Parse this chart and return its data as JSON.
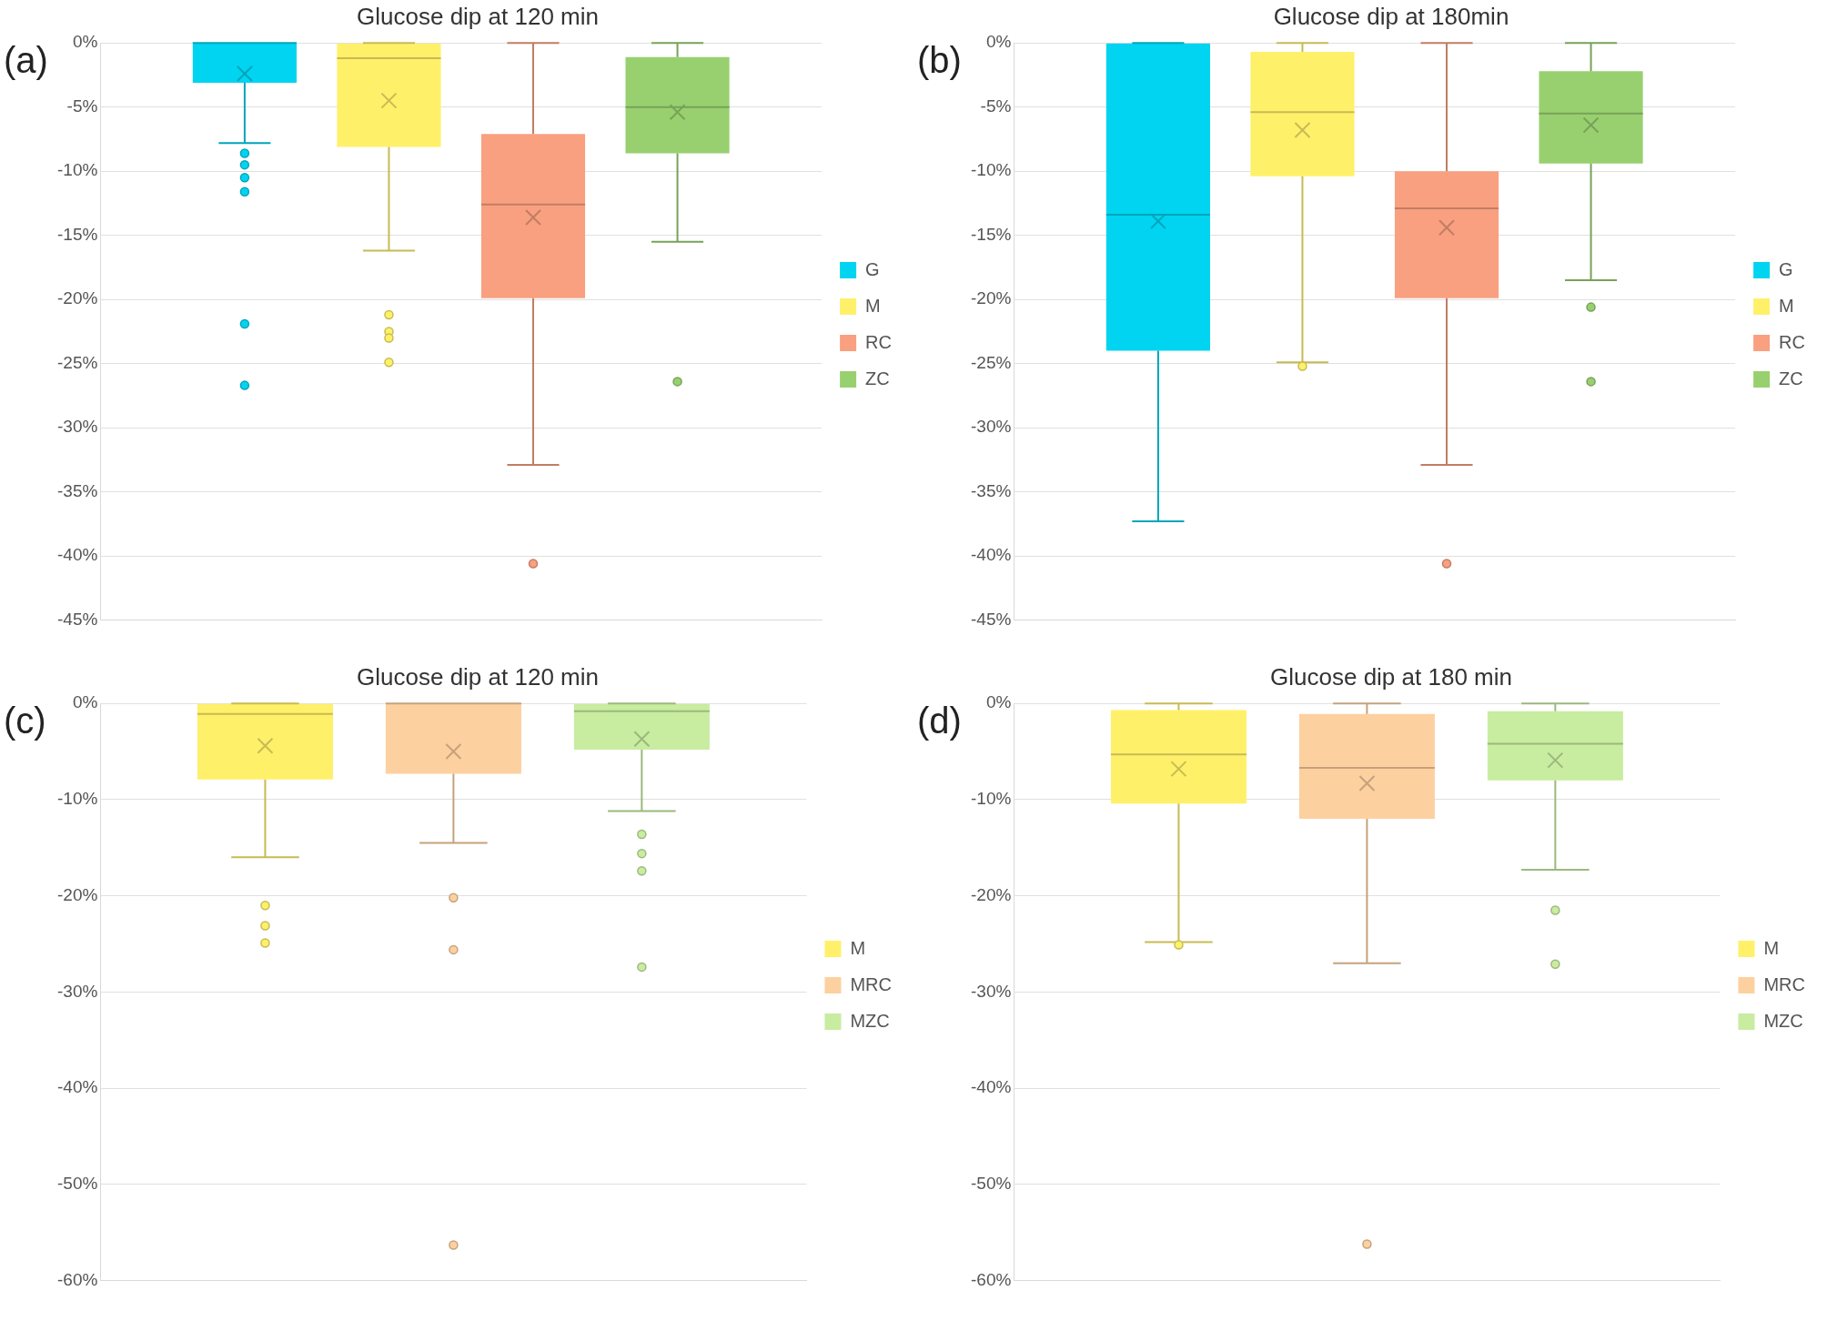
{
  "chart_data": [
    {
      "type": "box",
      "title": "Glucose dip at 120 min",
      "annotations": [
        "(a)"
      ],
      "categories": [
        null
      ],
      "legend": "right",
      "grid": "y",
      "ylim": [
        -45,
        0
      ],
      "yticks": [
        {
          "value": -45,
          "label": "-45%"
        },
        {
          "value": -40,
          "label": "-40%"
        },
        {
          "value": -35,
          "label": "-35%"
        },
        {
          "value": -30,
          "label": "-30%"
        },
        {
          "value": -25,
          "label": "-25%"
        },
        {
          "value": -20,
          "label": "-20%"
        },
        {
          "value": -15,
          "label": "-15%"
        },
        {
          "value": -10,
          "label": "-10%"
        },
        {
          "value": -5,
          "label": "-5%"
        },
        {
          "value": 0,
          "label": "0%"
        }
      ],
      "series": [
        {
          "name": "G",
          "color": "#00d4f0",
          "boxes": [
            {
              "low": -7.8,
              "q1": -3.1,
              "median": 0,
              "q3": 0,
              "high": 0,
              "mean": -2.4,
              "outliers": [
                -8.6,
                -9.5,
                -10.5,
                -11.6,
                -21.9,
                -26.7
              ]
            }
          ]
        },
        {
          "name": "M",
          "color": "#fff06a",
          "boxes": [
            {
              "low": -16.2,
              "q1": -8.1,
              "median": -1.2,
              "q3": 0,
              "high": 0,
              "mean": -4.5,
              "outliers": [
                -21.2,
                -22.5,
                -23.0,
                -24.9
              ]
            }
          ]
        },
        {
          "name": "RC",
          "color": "#f8a080",
          "boxes": [
            {
              "low": -32.9,
              "q1": -19.9,
              "median": -12.6,
              "q3": -7.1,
              "high": 0,
              "mean": -13.6,
              "outliers": [
                -40.6
              ]
            }
          ]
        },
        {
          "name": "ZC",
          "color": "#98d070",
          "boxes": [
            {
              "low": -15.5,
              "q1": -8.6,
              "median": -5.0,
              "q3": -1.1,
              "high": 0,
              "mean": -5.4,
              "outliers": [
                -26.4
              ]
            }
          ]
        }
      ]
    },
    {
      "type": "box",
      "title": "Glucose dip at 180min",
      "annotations": [
        "(b)"
      ],
      "categories": [
        null
      ],
      "legend": "right",
      "grid": "y",
      "ylim": [
        -45,
        0
      ],
      "yticks": [
        {
          "value": -45,
          "label": "-45%"
        },
        {
          "value": -40,
          "label": "-40%"
        },
        {
          "value": -35,
          "label": "-35%"
        },
        {
          "value": -30,
          "label": "-30%"
        },
        {
          "value": -25,
          "label": "-25%"
        },
        {
          "value": -20,
          "label": "-20%"
        },
        {
          "value": -15,
          "label": "-15%"
        },
        {
          "value": -10,
          "label": "-10%"
        },
        {
          "value": -5,
          "label": "-5%"
        },
        {
          "value": 0,
          "label": "0%"
        }
      ],
      "series": [
        {
          "name": "G",
          "color": "#00d4f0",
          "boxes": [
            {
              "low": -37.3,
              "q1": -24.0,
              "median": -13.4,
              "q3": 0,
              "high": 0,
              "mean": -13.9
            }
          ]
        },
        {
          "name": "M",
          "color": "#fff06a",
          "boxes": [
            {
              "low": -24.9,
              "q1": -10.4,
              "median": -5.4,
              "q3": -0.7,
              "high": 0,
              "mean": -6.8,
              "outliers": [
                -25.2
              ]
            }
          ]
        },
        {
          "name": "RC",
          "color": "#f8a080",
          "boxes": [
            {
              "low": -32.9,
              "q1": -19.9,
              "median": -12.9,
              "q3": -10.0,
              "high": 0,
              "mean": -14.4,
              "outliers": [
                -40.6
              ]
            }
          ]
        },
        {
          "name": "ZC",
          "color": "#98d070",
          "boxes": [
            {
              "low": -18.5,
              "q1": -9.4,
              "median": -5.5,
              "q3": -2.2,
              "high": 0,
              "mean": -6.4,
              "outliers": [
                -20.6,
                -26.4
              ]
            }
          ]
        }
      ]
    },
    {
      "type": "box",
      "title": "Glucose dip at 120 min",
      "annotations": [
        "(c)"
      ],
      "categories": [
        null
      ],
      "legend": "right",
      "grid": "y",
      "ylim": [
        -60,
        0
      ],
      "yticks": [
        {
          "value": -60,
          "label": "-60%"
        },
        {
          "value": -50,
          "label": "-50%"
        },
        {
          "value": -40,
          "label": "-40%"
        },
        {
          "value": -30,
          "label": "-30%"
        },
        {
          "value": -20,
          "label": "-20%"
        },
        {
          "value": -10,
          "label": "-10%"
        },
        {
          "value": 0,
          "label": "0%"
        }
      ],
      "series": [
        {
          "name": "M",
          "color": "#fff06a",
          "boxes": [
            {
              "low": -16.0,
              "q1": -7.9,
              "median": -1.1,
              "q3": 0,
              "high": 0,
              "mean": -4.4,
              "outliers": [
                -21.0,
                -23.1,
                -24.9
              ]
            }
          ]
        },
        {
          "name": "MRC",
          "color": "#fdd0a0",
          "boxes": [
            {
              "low": -14.5,
              "q1": -7.3,
              "median": 0,
              "q3": 0,
              "high": 0,
              "mean": -5.0,
              "outliers": [
                -20.2,
                -25.6,
                -56.3
              ]
            }
          ]
        },
        {
          "name": "MZC",
          "color": "#c8eca0",
          "boxes": [
            {
              "low": -11.2,
              "q1": -4.8,
              "median": -0.8,
              "q3": 0,
              "high": 0,
              "mean": -3.7,
              "outliers": [
                -13.6,
                -15.6,
                -17.4,
                -27.4
              ]
            }
          ]
        }
      ]
    },
    {
      "type": "box",
      "title": "Glucose dip at 180 min",
      "annotations": [
        "(d)"
      ],
      "categories": [
        null
      ],
      "legend": "right",
      "grid": "y",
      "ylim": [
        -60,
        0
      ],
      "yticks": [
        {
          "value": -60,
          "label": "-60%"
        },
        {
          "value": -50,
          "label": "-50%"
        },
        {
          "value": -40,
          "label": "-40%"
        },
        {
          "value": -30,
          "label": "-30%"
        },
        {
          "value": -20,
          "label": "-20%"
        },
        {
          "value": -10,
          "label": "-10%"
        },
        {
          "value": 0,
          "label": "0%"
        }
      ],
      "series": [
        {
          "name": "M",
          "color": "#fff06a",
          "boxes": [
            {
              "low": -24.8,
              "q1": -10.4,
              "median": -5.3,
              "q3": -0.7,
              "high": 0,
              "mean": -6.8,
              "outliers": [
                -25.1
              ]
            }
          ]
        },
        {
          "name": "MRC",
          "color": "#fdd0a0",
          "boxes": [
            {
              "low": -27.0,
              "q1": -12.0,
              "median": -6.7,
              "q3": -1.1,
              "high": 0,
              "mean": -8.3,
              "outliers": [
                -56.2
              ]
            }
          ]
        },
        {
          "name": "MZC",
          "color": "#c8eca0",
          "boxes": [
            {
              "low": -17.3,
              "q1": -8.0,
              "median": -4.2,
              "q3": -0.8,
              "high": 0,
              "mean": -5.9,
              "outliers": [
                -21.5,
                -27.1
              ]
            }
          ]
        }
      ]
    }
  ]
}
